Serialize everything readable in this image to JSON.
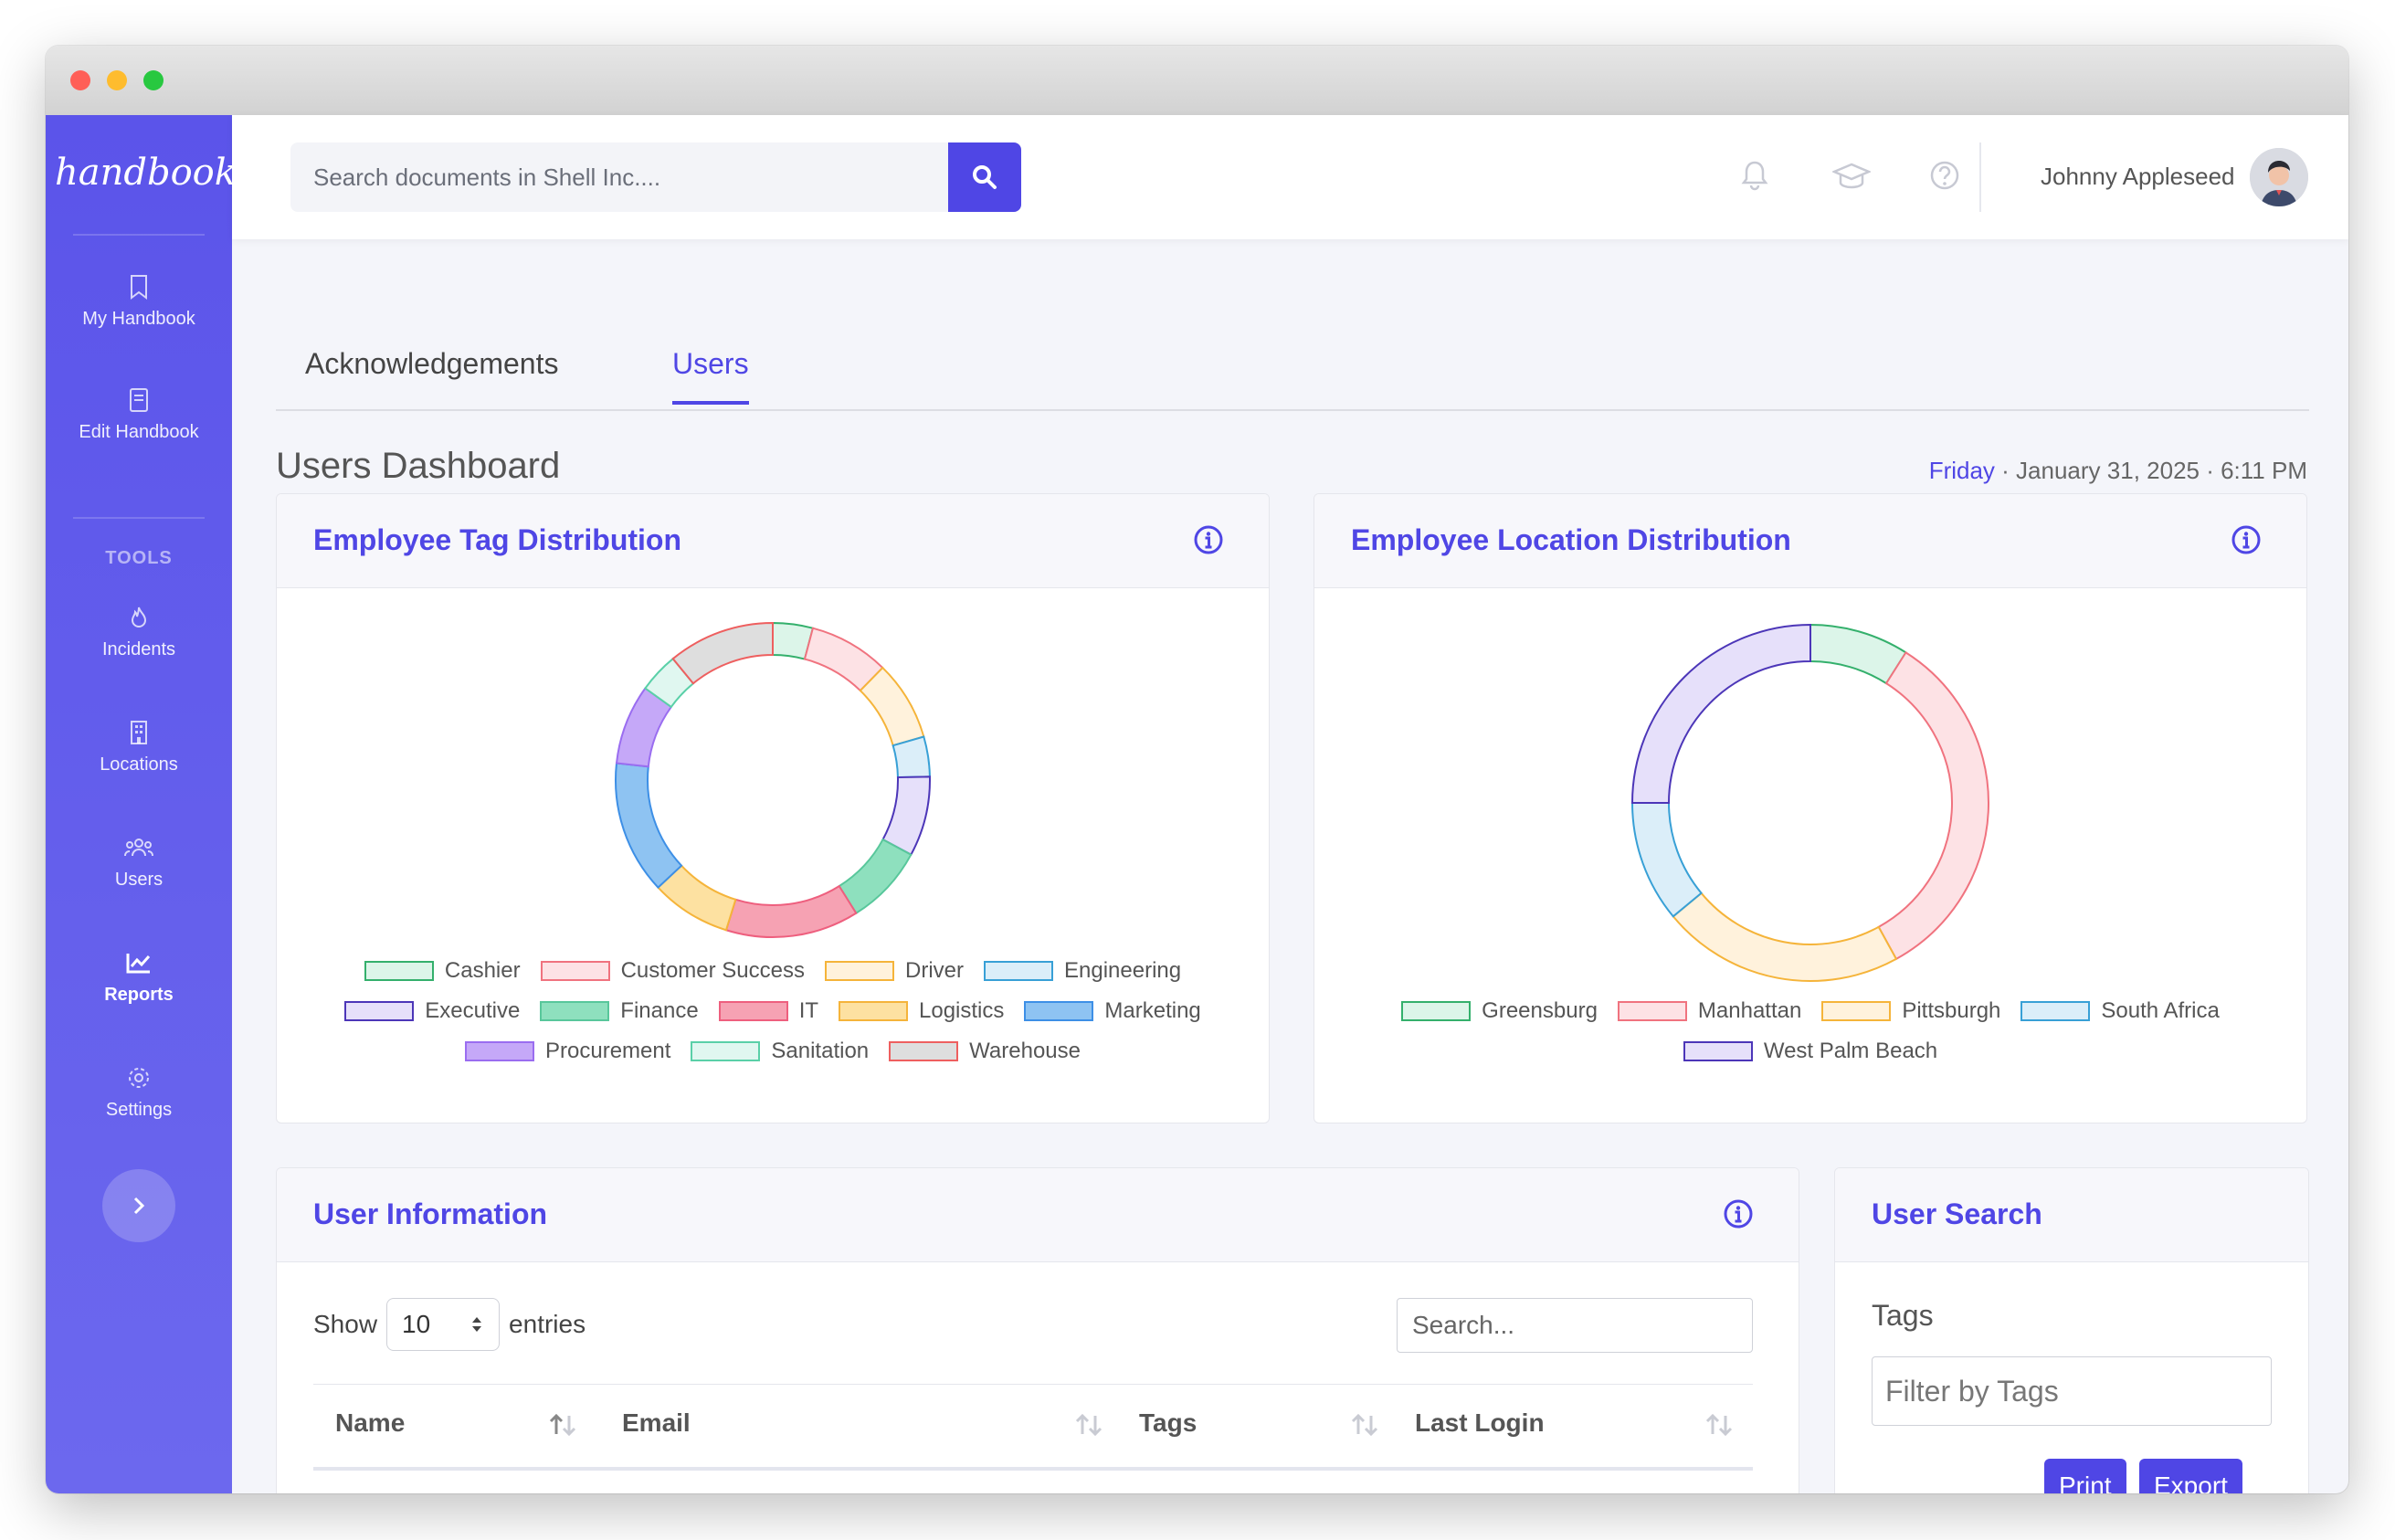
{
  "sidebar": {
    "logo": "handbook",
    "tools_heading": "TOOLS",
    "items": [
      {
        "label": "My Handbook",
        "icon": "bookmark-icon"
      },
      {
        "label": "Edit Handbook",
        "icon": "book-icon"
      },
      {
        "label": "Incidents",
        "icon": "flame-icon"
      },
      {
        "label": "Locations",
        "icon": "building-icon"
      },
      {
        "label": "Users",
        "icon": "users-icon"
      },
      {
        "label": "Reports",
        "icon": "chart-icon",
        "active": true
      },
      {
        "label": "Settings",
        "icon": "gear-icon"
      }
    ]
  },
  "topbar": {
    "search_placeholder": "Search documents in Shell Inc....",
    "user_name": "Johnny Appleseed"
  },
  "tabs": [
    {
      "label": "Acknowledgements",
      "active": false
    },
    {
      "label": "Users",
      "active": true
    }
  ],
  "page": {
    "title": "Users Dashboard",
    "day": "Friday",
    "date_rest": "· January 31, 2025 · 6:11 PM"
  },
  "colors": {
    "accent": "#4f46e5",
    "sidebar": "#5b54ea"
  },
  "tag_chart": {
    "title": "Employee Tag Distribution",
    "type": "doughnut",
    "legend": [
      {
        "label": "Cashier",
        "fill": "#dcf5e9",
        "stroke": "#34b06c"
      },
      {
        "label": "Customer Success",
        "fill": "#fde2e5",
        "stroke": "#f0737f"
      },
      {
        "label": "Driver",
        "fill": "#fff2dc",
        "stroke": "#f5b43a"
      },
      {
        "label": "Engineering",
        "fill": "#dbeef9",
        "stroke": "#38a0d6"
      },
      {
        "label": "Executive",
        "fill": "#e6e0fa",
        "stroke": "#4c36b8"
      },
      {
        "label": "Finance",
        "fill": "#8ee0be",
        "stroke": "#58c79b"
      },
      {
        "label": "IT",
        "fill": "#f6a2b3",
        "stroke": "#ee5f7e"
      },
      {
        "label": "Logistics",
        "fill": "#fde1a1",
        "stroke": "#f5b43a"
      },
      {
        "label": "Marketing",
        "fill": "#8ec3f2",
        "stroke": "#3d8fe6"
      },
      {
        "label": "Procurement",
        "fill": "#c5a8f8",
        "stroke": "#9a6df0"
      },
      {
        "label": "Sanitation",
        "fill": "#e0f7f0",
        "stroke": "#5ad0a8"
      },
      {
        "label": "Warehouse",
        "fill": "#dedede",
        "stroke": "#ee5f5f"
      }
    ],
    "segments": [
      {
        "tag": "Cashier",
        "value": 3
      },
      {
        "tag": "Customer Success",
        "value": 6
      },
      {
        "tag": "Driver",
        "value": 6
      },
      {
        "tag": "Engineering",
        "value": 3
      },
      {
        "tag": "Executive",
        "value": 6
      },
      {
        "tag": "Finance",
        "value": 6
      },
      {
        "tag": "IT",
        "value": 10
      },
      {
        "tag": "Logistics",
        "value": 6
      },
      {
        "tag": "Marketing",
        "value": 10
      },
      {
        "tag": "Procurement",
        "value": 6
      },
      {
        "tag": "Sanitation",
        "value": 3
      },
      {
        "tag": "Warehouse",
        "value": 8
      }
    ]
  },
  "location_chart": {
    "title": "Employee Location Distribution",
    "type": "doughnut",
    "legend": [
      {
        "label": "Greensburg",
        "fill": "#dcf5e9",
        "stroke": "#34b06c"
      },
      {
        "label": "Manhattan",
        "fill": "#fde2e5",
        "stroke": "#f0737f"
      },
      {
        "label": "Pittsburgh",
        "fill": "#fff2dc",
        "stroke": "#f5b43a"
      },
      {
        "label": "South Africa",
        "fill": "#dbeef9",
        "stroke": "#38a0d6"
      },
      {
        "label": "West Palm Beach",
        "fill": "#e6e0fa",
        "stroke": "#4c36b8"
      }
    ],
    "segments": [
      {
        "location": "Greensburg",
        "value": 9
      },
      {
        "location": "Manhattan",
        "value": 33
      },
      {
        "location": "Pittsburgh",
        "value": 22
      },
      {
        "location": "South Africa",
        "value": 11
      },
      {
        "location": "West Palm Beach",
        "value": 25
      }
    ]
  },
  "user_info": {
    "title": "User Information",
    "show_label": "Show",
    "entries_value": "10",
    "entries_label": "entries",
    "search_placeholder": "Search...",
    "columns": [
      "Name",
      "Email",
      "Tags",
      "Last Login"
    ]
  },
  "user_search": {
    "title": "User Search",
    "tags_label": "Tags",
    "tags_placeholder": "Filter by Tags",
    "print_label": "Print",
    "export_label": "Export"
  }
}
